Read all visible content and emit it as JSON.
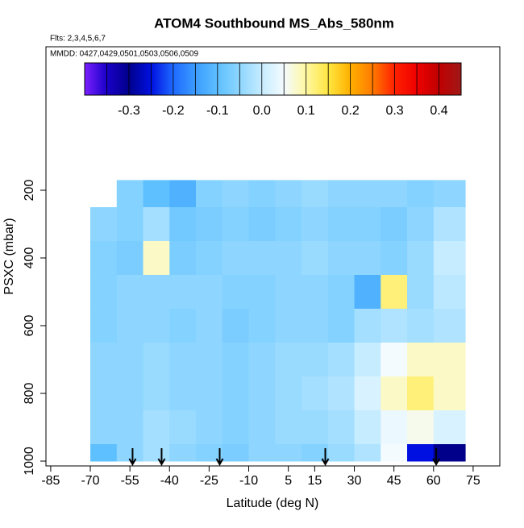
{
  "chart_data": {
    "type": "heatmap",
    "title": "ATOM4 Southbound MS_Abs_580nm",
    "subtitle": "Flts: 2,3,4,5,6,7",
    "annotation": "MMDD: 0427,0429,0501,0503,0506,0509",
    "x_label": "Latitude (deg N)",
    "y_label": "PSXC (mbar)",
    "xlim": [
      -86.8,
      85.1
    ],
    "ylim": [
      1014.3,
      -223.8
    ],
    "xticks": [
      -85,
      -70,
      -55,
      -40,
      -25,
      -10,
      5,
      15,
      30,
      45,
      60,
      75
    ],
    "yticks": [
      200,
      400,
      600,
      800,
      1000
    ],
    "lat_edges": [
      -70,
      -60,
      -50,
      -40,
      -30,
      -20,
      -10,
      0,
      10,
      20,
      30,
      40,
      50,
      60,
      72
    ],
    "pressure_edges": [
      170,
      250,
      350,
      450,
      550,
      650,
      750,
      850,
      950,
      1000
    ],
    "values": [
      [
        null,
        -0.06,
        -0.1,
        -0.12,
        -0.06,
        -0.05,
        -0.06,
        -0.05,
        -0.04,
        -0.05,
        -0.05,
        -0.05,
        -0.06,
        -0.05
      ],
      [
        -0.05,
        -0.06,
        -0.03,
        -0.08,
        -0.07,
        -0.06,
        -0.07,
        -0.06,
        -0.05,
        -0.06,
        -0.06,
        -0.07,
        -0.05,
        -0.02
      ],
      [
        -0.06,
        -0.07,
        0.08,
        -0.07,
        -0.06,
        -0.05,
        -0.05,
        -0.05,
        -0.04,
        -0.05,
        -0.05,
        -0.06,
        -0.04,
        0.0
      ],
      [
        -0.06,
        -0.05,
        -0.05,
        -0.05,
        -0.05,
        -0.06,
        -0.06,
        -0.05,
        -0.05,
        -0.06,
        -0.12,
        0.12,
        -0.04,
        -0.01
      ],
      [
        -0.06,
        -0.05,
        -0.05,
        -0.06,
        -0.05,
        -0.07,
        -0.06,
        -0.05,
        -0.05,
        -0.06,
        -0.03,
        -0.02,
        -0.03,
        -0.02
      ],
      [
        -0.05,
        -0.05,
        -0.04,
        -0.05,
        -0.05,
        -0.06,
        -0.05,
        -0.04,
        -0.04,
        -0.03,
        0.0,
        0.05,
        0.08,
        0.08
      ],
      [
        -0.05,
        -0.05,
        -0.04,
        -0.05,
        -0.05,
        -0.06,
        -0.05,
        -0.04,
        -0.03,
        -0.02,
        0.02,
        0.08,
        0.12,
        0.08
      ],
      [
        -0.05,
        -0.05,
        -0.03,
        -0.04,
        -0.05,
        -0.06,
        -0.05,
        -0.04,
        -0.04,
        -0.03,
        0.0,
        0.04,
        0.06,
        0.02
      ],
      [
        -0.1,
        -0.05,
        -0.03,
        -0.05,
        -0.06,
        -0.07,
        -0.05,
        -0.05,
        -0.06,
        -0.04,
        -0.02,
        0.05,
        -0.25,
        -0.3
      ]
    ],
    "arrows": [
      -54,
      -43,
      -21,
      19,
      61
    ],
    "colorbar": {
      "lim": [
        -0.4,
        0.45
      ],
      "ticks": [
        -0.3,
        -0.2,
        -0.1,
        0.0,
        0.1,
        0.2,
        0.3,
        0.4
      ],
      "stops": [
        {
          "value": -0.4,
          "color": "#7a1fff"
        },
        {
          "value": -0.35,
          "color": "#1a00c8"
        },
        {
          "value": -0.3,
          "color": "#00008b"
        },
        {
          "value": -0.25,
          "color": "#0010e0"
        },
        {
          "value": -0.2,
          "color": "#1e6aff"
        },
        {
          "value": -0.15,
          "color": "#3c9cff"
        },
        {
          "value": -0.1,
          "color": "#5ec0ff"
        },
        {
          "value": -0.05,
          "color": "#8ed6ff"
        },
        {
          "value": 0,
          "color": "#c6ecff"
        },
        {
          "value": 0.05,
          "color": "#f4fbff"
        },
        {
          "value": 0.1,
          "color": "#fff7a0"
        },
        {
          "value": 0.15,
          "color": "#ffe640"
        },
        {
          "value": 0.2,
          "color": "#ffb000"
        },
        {
          "value": 0.25,
          "color": "#ff7a00"
        },
        {
          "value": 0.3,
          "color": "#ff2000"
        },
        {
          "value": 0.35,
          "color": "#ee0000"
        },
        {
          "value": 0.4,
          "color": "#c00000"
        },
        {
          "value": 0.45,
          "color": "#a01818"
        }
      ]
    }
  }
}
